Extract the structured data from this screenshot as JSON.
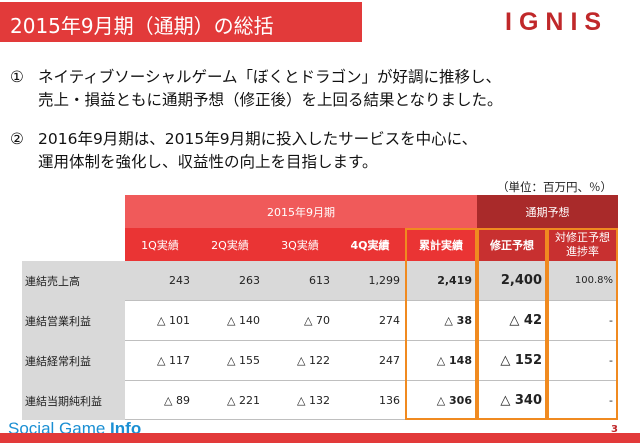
{
  "header": {
    "title": "2015年9月期（通期）の総括",
    "logo": "IGNIS"
  },
  "points": [
    {
      "num": "①",
      "line1": "ネイティブソーシャルゲーム「ぼくとドラゴン」が好調に推移し、",
      "line2": "売上・損益ともに通期予想（修正後）を上回る結果となりました。"
    },
    {
      "num": "②",
      "line1": "2016年9月期は、2015年9月期に投入したサービスを中心に、",
      "line2": "運用体制を強化し、収益性の向上を目指します。"
    }
  ],
  "table": {
    "unit": "（単位：百万円、％）",
    "group_fy": "2015年9月期",
    "group_forecast": "通期予想",
    "col_headers": [
      "1Q実績",
      "2Q実績",
      "3Q実績",
      "4Q実績",
      "累計実績",
      "修正予想",
      "対修正予想進捗率"
    ],
    "rows": [
      {
        "label": "連結売上高",
        "values": [
          "243",
          "263",
          "613",
          "1,299",
          "2,419",
          "2,400",
          "100.8%"
        ]
      },
      {
        "label": "連結営業利益",
        "values": [
          "△ 101",
          "△ 140",
          "△ 70",
          "274",
          "△ 38",
          "△ 42",
          "-"
        ]
      },
      {
        "label": "連結経常利益",
        "values": [
          "△ 117",
          "△ 155",
          "△ 122",
          "247",
          "△ 148",
          "△ 152",
          "-"
        ]
      },
      {
        "label": "連結当期純利益",
        "values": [
          "△ 89",
          "△ 221",
          "△ 132",
          "136",
          "△ 306",
          "△ 340",
          "-"
        ]
      }
    ]
  },
  "footer": {
    "brand_light": "Social Game ",
    "brand_bold": "Info",
    "page": "3"
  }
}
